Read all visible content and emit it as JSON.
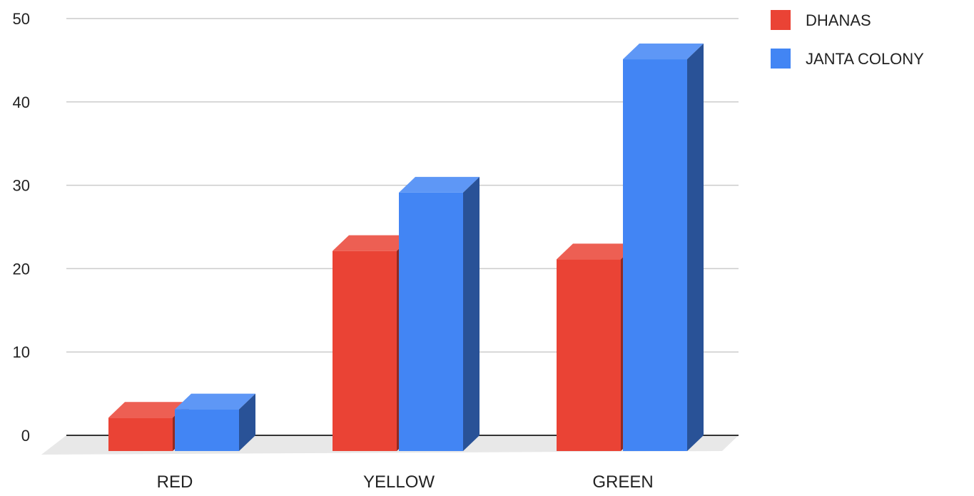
{
  "chart_data": {
    "type": "bar",
    "style": "3d",
    "categories": [
      "RED",
      "YELLOW",
      "GREEN"
    ],
    "series": [
      {
        "name": "DHANAS",
        "color": "#ea4335",
        "values": [
          4,
          24,
          23
        ]
      },
      {
        "name": "JANTA COLONY",
        "color": "#4285f4",
        "values": [
          5,
          31,
          47
        ]
      }
    ],
    "ylim": [
      0,
      50
    ],
    "yticks": [
      0,
      10,
      20,
      30,
      40,
      50
    ],
    "grid": true,
    "legend_position": "top-right",
    "title": "",
    "xlabel": "",
    "ylabel": ""
  }
}
